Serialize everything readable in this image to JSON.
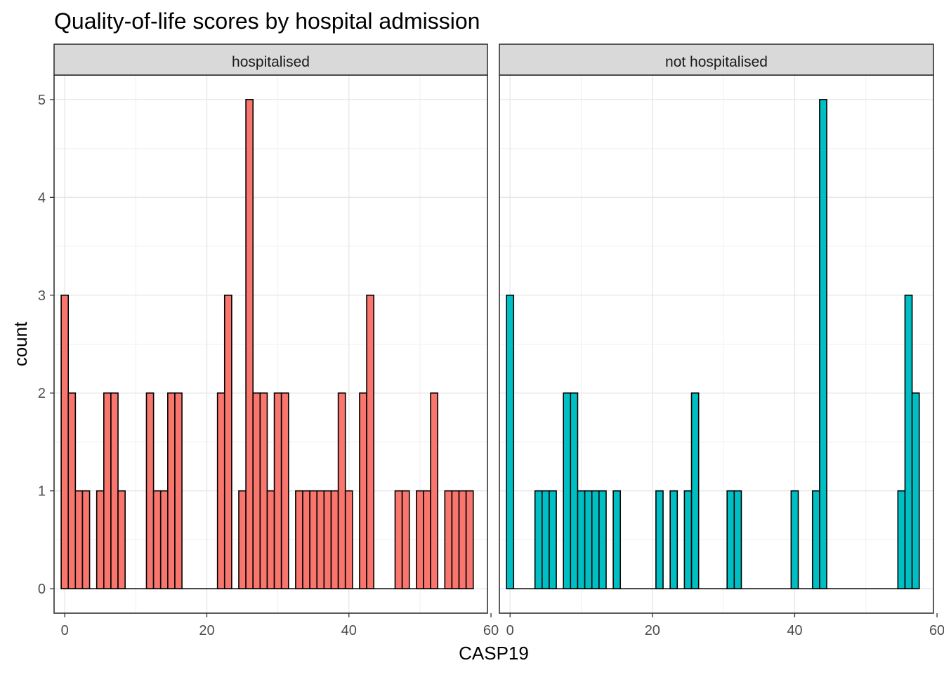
{
  "chart_data": {
    "type": "bar",
    "title": "Quality-of-life scores by hospital admission",
    "xlabel": "CASP19",
    "ylabel": "count",
    "xlim": [
      -1.5,
      59.5
    ],
    "ylim": [
      -0.25,
      5.25
    ],
    "x_ticks": [
      0,
      20,
      40,
      60
    ],
    "y_ticks": [
      0,
      1,
      2,
      3,
      4,
      5
    ],
    "bin_width": 1,
    "grid": true,
    "legend": "none",
    "panels": [
      {
        "label": "hospitalised",
        "color": "#F8766D",
        "x": [
          0,
          1,
          2,
          3,
          4,
          5,
          6,
          7,
          8,
          9,
          10,
          11,
          12,
          13,
          14,
          15,
          16,
          17,
          18,
          19,
          20,
          21,
          22,
          23,
          24,
          25,
          26,
          27,
          28,
          29,
          30,
          31,
          32,
          33,
          34,
          35,
          36,
          37,
          38,
          39,
          40,
          41,
          42,
          43,
          44,
          45,
          46,
          47,
          48,
          49,
          50,
          51,
          52,
          53,
          54,
          55,
          56,
          57
        ],
        "values": [
          3,
          2,
          1,
          1,
          0,
          1,
          2,
          2,
          1,
          0,
          0,
          0,
          2,
          1,
          1,
          2,
          2,
          0,
          0,
          0,
          0,
          0,
          2,
          3,
          0,
          1,
          5,
          2,
          2,
          1,
          2,
          2,
          0,
          1,
          1,
          1,
          1,
          1,
          1,
          2,
          1,
          0,
          2,
          3,
          0,
          0,
          0,
          1,
          1,
          0,
          1,
          1,
          2,
          0,
          1,
          1,
          1,
          1
        ]
      },
      {
        "label": "not hospitalised",
        "color": "#00BFC4",
        "x": [
          0,
          1,
          2,
          3,
          4,
          5,
          6,
          7,
          8,
          9,
          10,
          11,
          12,
          13,
          14,
          15,
          16,
          17,
          18,
          19,
          20,
          21,
          22,
          23,
          24,
          25,
          26,
          27,
          28,
          29,
          30,
          31,
          32,
          33,
          34,
          35,
          36,
          37,
          38,
          39,
          40,
          41,
          42,
          43,
          44,
          45,
          46,
          47,
          48,
          49,
          50,
          51,
          52,
          53,
          54,
          55,
          56,
          57
        ],
        "values": [
          3,
          0,
          0,
          0,
          1,
          1,
          1,
          0,
          2,
          2,
          1,
          1,
          1,
          1,
          0,
          1,
          0,
          0,
          0,
          0,
          0,
          1,
          0,
          1,
          0,
          1,
          2,
          0,
          0,
          0,
          0,
          1,
          1,
          0,
          0,
          0,
          0,
          0,
          0,
          0,
          1,
          0,
          0,
          1,
          5,
          0,
          0,
          0,
          0,
          0,
          0,
          0,
          0,
          0,
          0,
          1,
          3,
          2
        ]
      }
    ]
  }
}
